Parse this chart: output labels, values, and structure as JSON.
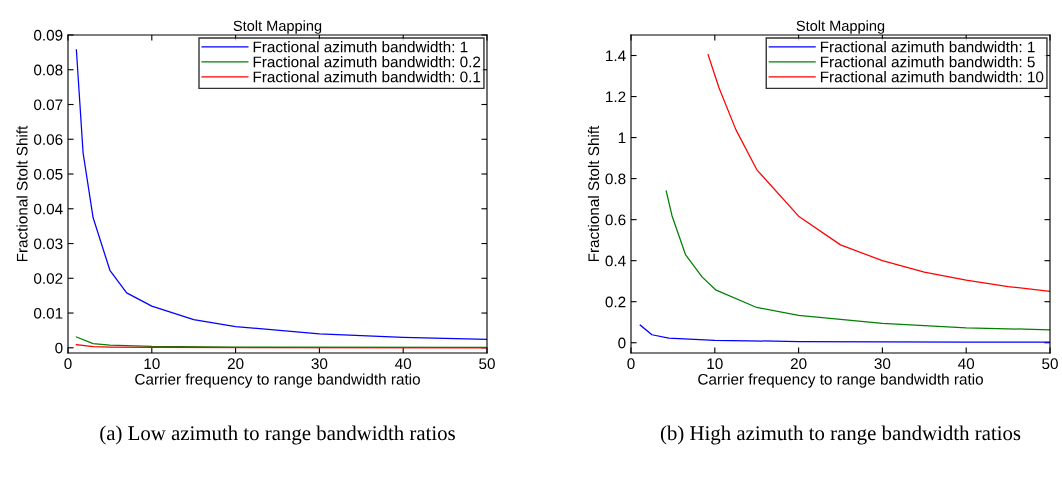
{
  "chart_data": [
    {
      "type": "line",
      "title": "Stolt Mapping",
      "xlabel": "Carrier frequency to range bandwidth ratio",
      "ylabel": "Fractional Stolt Shift",
      "xlim": [
        0,
        50
      ],
      "xticks": [
        0,
        10,
        20,
        30,
        40,
        50
      ],
      "ylim": [
        -0.0015,
        0.09
      ],
      "yticks": [
        0,
        0.01,
        0.02,
        0.03,
        0.04,
        0.05,
        0.06,
        0.07,
        0.08,
        0.09
      ],
      "grid": false,
      "legend": "top right",
      "marker": "none",
      "line_style": "solid",
      "series": [
        {
          "name": "Fractional azimuth bandwidth: 1",
          "color": "#0000ff",
          "x": [
            1,
            1.8,
            3,
            5,
            7,
            10,
            15,
            20,
            30,
            40,
            50
          ],
          "values": [
            0.0857,
            0.0561,
            0.0374,
            0.0223,
            0.0158,
            0.012,
            0.0081,
            0.0061,
            0.004,
            0.003,
            0.0024
          ]
        },
        {
          "name": "Fractional azimuth bandwidth: 0.2",
          "color": "#008000",
          "x": [
            1,
            3,
            5,
            10,
            20,
            50
          ],
          "values": [
            0.0031,
            0.0012,
            0.0008,
            0.0004,
            0.0002,
            0.0001
          ]
        },
        {
          "name": "Fractional azimuth bandwidth: 0.1",
          "color": "#ff0000",
          "x": [
            1,
            3,
            5,
            10,
            50
          ],
          "values": [
            0.0009,
            0.0003,
            0.0002,
            0.0001,
            0
          ]
        }
      ],
      "annotations": [
        "(a) Low azimuth to range bandwidth ratios"
      ]
    },
    {
      "type": "line",
      "title": "Stolt Mapping",
      "xlabel": "Carrier frequency to range bandwidth ratio",
      "ylabel": "Fractional Stolt Shift",
      "xlim": [
        0,
        50
      ],
      "xticks": [
        0,
        10,
        20,
        30,
        40,
        50
      ],
      "ylim": [
        -0.05,
        1.5
      ],
      "yticks": [
        0,
        0.2,
        0.4,
        0.6,
        0.8,
        1,
        1.2,
        1.4
      ],
      "grid": false,
      "legend": "top right",
      "marker": "none",
      "line_style": "solid",
      "series": [
        {
          "name": "Fractional azimuth bandwidth: 1",
          "color": "#0000ff",
          "x": [
            1.1,
            2.5,
            4.5,
            10,
            20,
            30,
            40,
            50
          ],
          "values": [
            0.086,
            0.039,
            0.023,
            0.012,
            0.006,
            0.004,
            0.003,
            0.0024
          ]
        },
        {
          "name": "Fractional azimuth bandwidth: 5",
          "color": "#008000",
          "x": [
            4.2,
            4.9,
            6.5,
            8.5,
            10.1,
            15,
            20,
            30,
            40,
            50
          ],
          "values": [
            0.74,
            0.618,
            0.43,
            0.32,
            0.258,
            0.172,
            0.133,
            0.094,
            0.073,
            0.063
          ]
        },
        {
          "name": "Fractional azimuth bandwidth: 10",
          "color": "#ff0000",
          "x": [
            9.2,
            10.5,
            12.5,
            15,
            20,
            25,
            30,
            35,
            40,
            45,
            50
          ],
          "values": [
            1.404,
            1.243,
            1.04,
            0.844,
            0.617,
            0.477,
            0.4,
            0.344,
            0.305,
            0.274,
            0.25
          ]
        }
      ],
      "annotations": [
        "(b) High azimuth to range bandwidth ratios"
      ]
    }
  ]
}
